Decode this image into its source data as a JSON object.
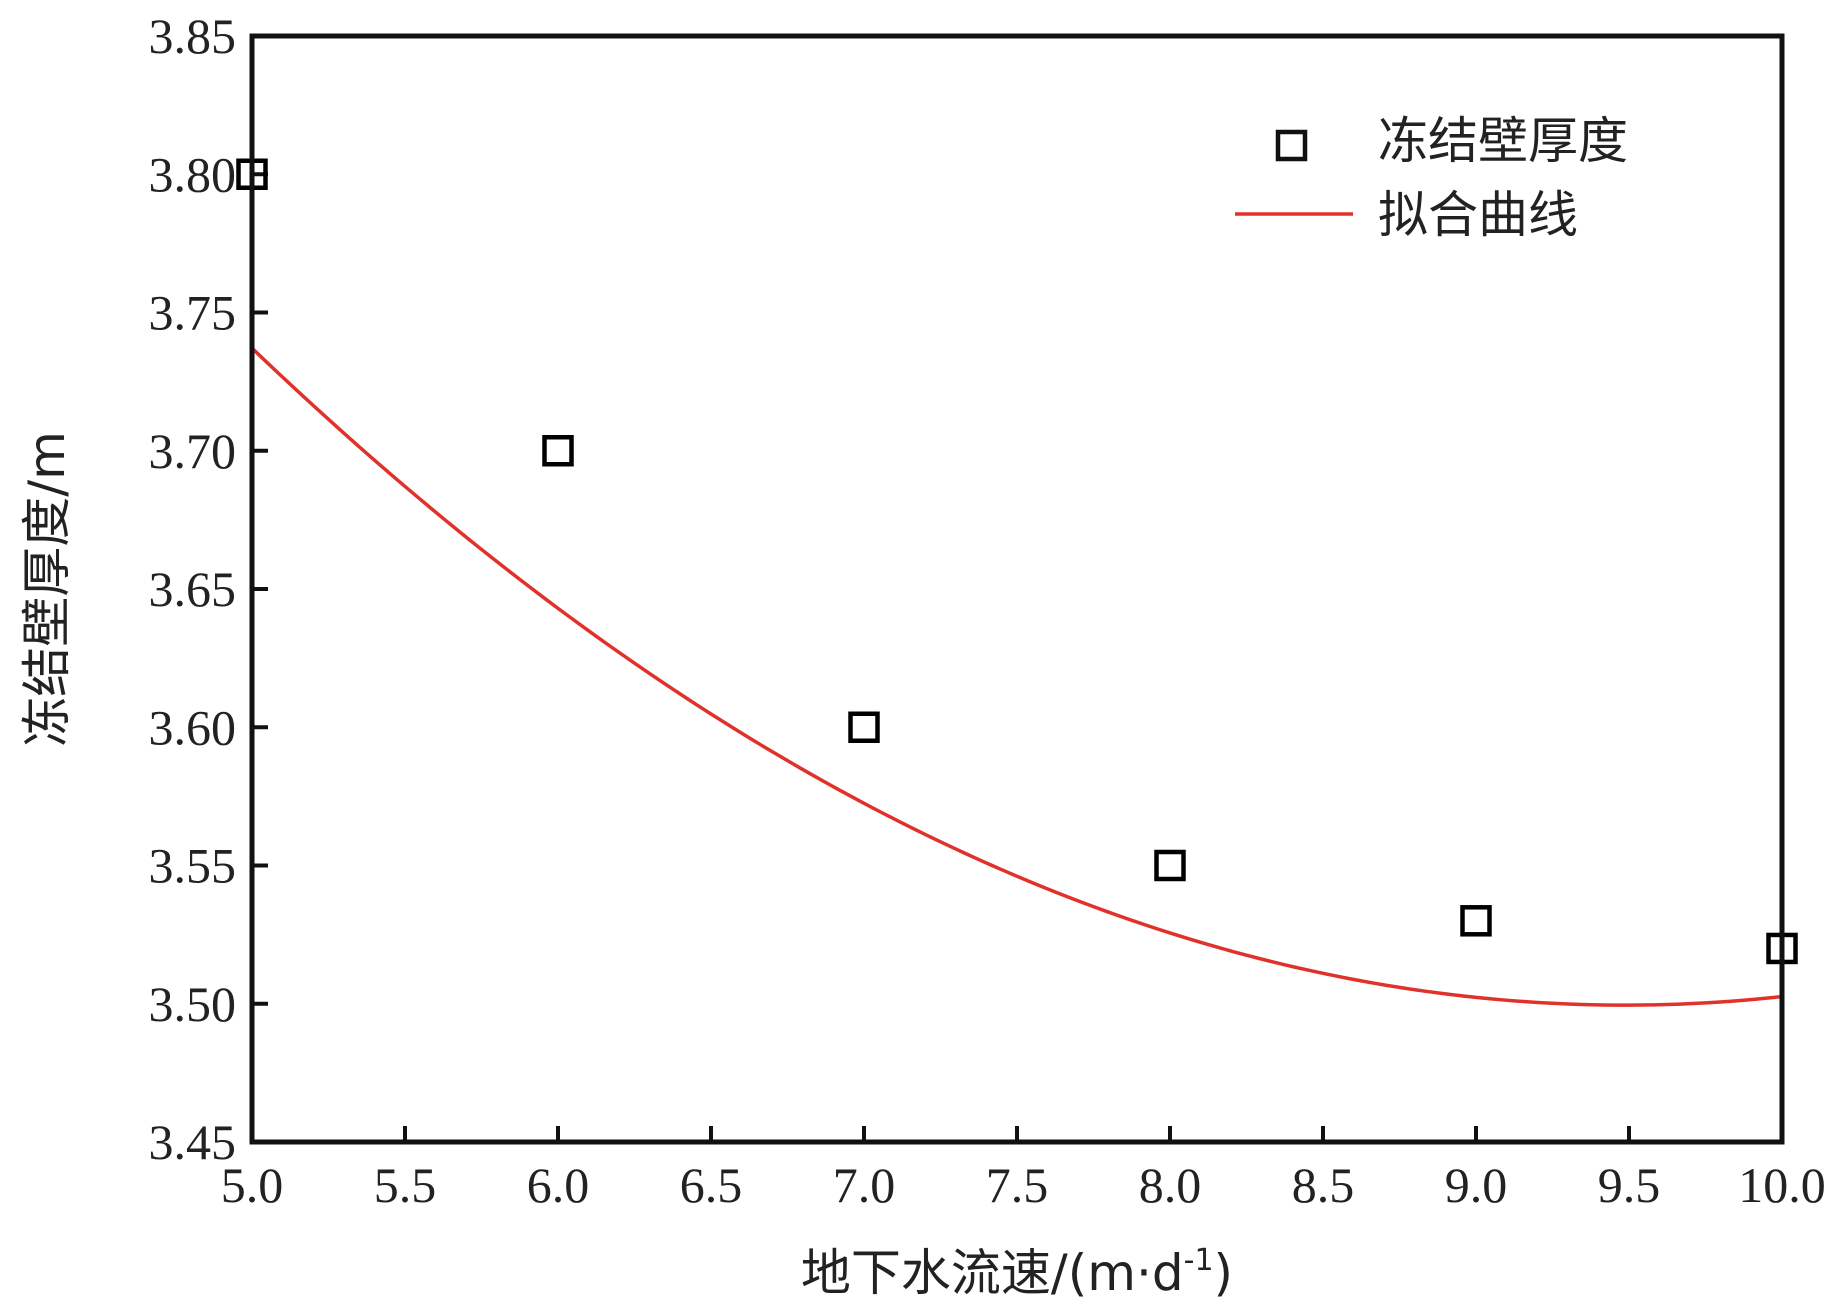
{
  "chart_data": {
    "type": "scatter",
    "title": "",
    "xlabel": "地下水流速/(m·d",
    "xlabel_sup": "-1",
    "xlabel_tail": ")",
    "ylabel": "冻结壁厚度/m",
    "xlim": [
      5.0,
      10.0
    ],
    "ylim": [
      3.45,
      3.85
    ],
    "xticks": [
      5.0,
      5.5,
      6.0,
      6.5,
      7.0,
      7.5,
      8.0,
      8.5,
      9.0,
      9.5,
      10.0
    ],
    "xtick_labels": [
      "5.0",
      "5.5",
      "6.0",
      "6.5",
      "7.0",
      "7.5",
      "8.0",
      "8.5",
      "9.0",
      "9.5",
      "10.0"
    ],
    "yticks": [
      3.45,
      3.5,
      3.55,
      3.6,
      3.65,
      3.7,
      3.75,
      3.8,
      3.85
    ],
    "ytick_labels": [
      "3.45",
      "3.50",
      "3.55",
      "3.60",
      "3.65",
      "3.70",
      "3.75",
      "3.80",
      "3.85"
    ],
    "grid": false,
    "legend_position": "top-right",
    "series": [
      {
        "name": "冻结壁厚度",
        "type": "scatter",
        "marker": "open-square",
        "color": "#000000",
        "x": [
          5.0,
          6.0,
          7.0,
          8.0,
          9.0,
          10.0
        ],
        "y": [
          3.8,
          3.7,
          3.6,
          3.55,
          3.53,
          3.52
        ]
      },
      {
        "name": "拟合曲线",
        "type": "line",
        "color": "#e0322a",
        "fit": "quadratic",
        "coefficients": {
          "a": 0.0118,
          "b": -0.2239,
          "c": 4.5616
        },
        "x_range": [
          5.0,
          10.0
        ]
      }
    ]
  }
}
